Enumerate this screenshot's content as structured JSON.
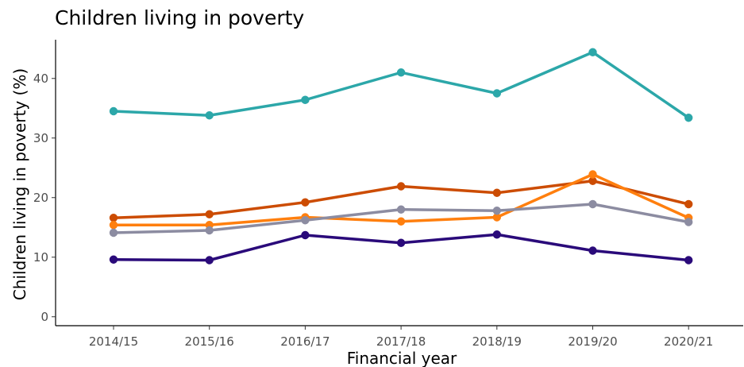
{
  "chart_data": {
    "type": "line",
    "title": "Children living in poverty",
    "xlabel": "Financial year",
    "ylabel": "Children living in poverty (%)",
    "ylim": [
      -1.5,
      46.5
    ],
    "yticks": [
      0,
      10,
      20,
      30,
      40
    ],
    "categories": [
      "2014/15",
      "2015/16",
      "2016/17",
      "2017/18",
      "2018/19",
      "2019/20",
      "2020/21"
    ],
    "grid": false,
    "legend": "none",
    "series": [
      {
        "color": "#2ca7a9",
        "values": [
          34.5,
          33.8,
          36.4,
          41.0,
          37.5,
          44.4,
          33.4
        ]
      },
      {
        "color": "#cc4c02",
        "values": [
          16.6,
          17.2,
          19.2,
          21.9,
          20.8,
          22.8,
          18.9
        ]
      },
      {
        "color": "#ff7f0e",
        "values": [
          15.4,
          15.4,
          16.7,
          16.0,
          16.7,
          23.9,
          16.6
        ]
      },
      {
        "color": "#8c8ca1",
        "values": [
          14.1,
          14.5,
          16.2,
          18.0,
          17.8,
          18.9,
          15.9
        ]
      },
      {
        "color": "#2a0a7a",
        "values": [
          9.6,
          9.5,
          13.7,
          12.4,
          13.8,
          11.1,
          9.5
        ]
      }
    ]
  }
}
